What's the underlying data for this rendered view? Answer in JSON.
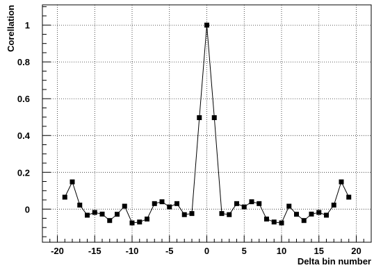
{
  "chart_data": {
    "type": "line",
    "title": "",
    "xlabel": "Delta bin number",
    "ylabel": "Corellation",
    "xlim": [
      -22,
      22
    ],
    "ylim": [
      -0.18,
      1.11
    ],
    "x_ticks": [
      -20,
      -15,
      -10,
      -5,
      0,
      5,
      10,
      15,
      20
    ],
    "y_ticks": [
      0,
      0.2,
      0.4,
      0.6,
      0.8,
      1
    ],
    "x_tick_labels": [
      "-20",
      "-15",
      "-10",
      "-5",
      "0",
      "5",
      "10",
      "15",
      "20"
    ],
    "y_tick_labels": [
      "0",
      "0.2",
      "0.4",
      "0.6",
      "0.8",
      "1"
    ],
    "grid": true,
    "series": [
      {
        "x": [
          -19,
          -18,
          -17,
          -16,
          -15,
          -14,
          -13,
          -12,
          -11,
          -10,
          -9,
          -8,
          -7,
          -6,
          -5,
          -4,
          -3,
          -2,
          -1,
          0,
          1,
          2,
          3,
          4,
          5,
          6,
          7,
          8,
          9,
          10,
          11,
          12,
          13,
          14,
          15,
          16,
          17,
          18,
          19
        ],
        "y": [
          0.065,
          0.148,
          0.022,
          -0.033,
          -0.018,
          -0.027,
          -0.062,
          -0.028,
          0.016,
          -0.075,
          -0.07,
          -0.054,
          0.03,
          0.04,
          0.012,
          0.03,
          -0.03,
          -0.024,
          0.497,
          1.0,
          0.497,
          -0.024,
          -0.03,
          0.03,
          0.012,
          0.04,
          0.03,
          -0.054,
          -0.07,
          -0.075,
          0.016,
          -0.028,
          -0.062,
          -0.027,
          -0.018,
          -0.033,
          0.022,
          0.148,
          0.065
        ]
      }
    ]
  }
}
